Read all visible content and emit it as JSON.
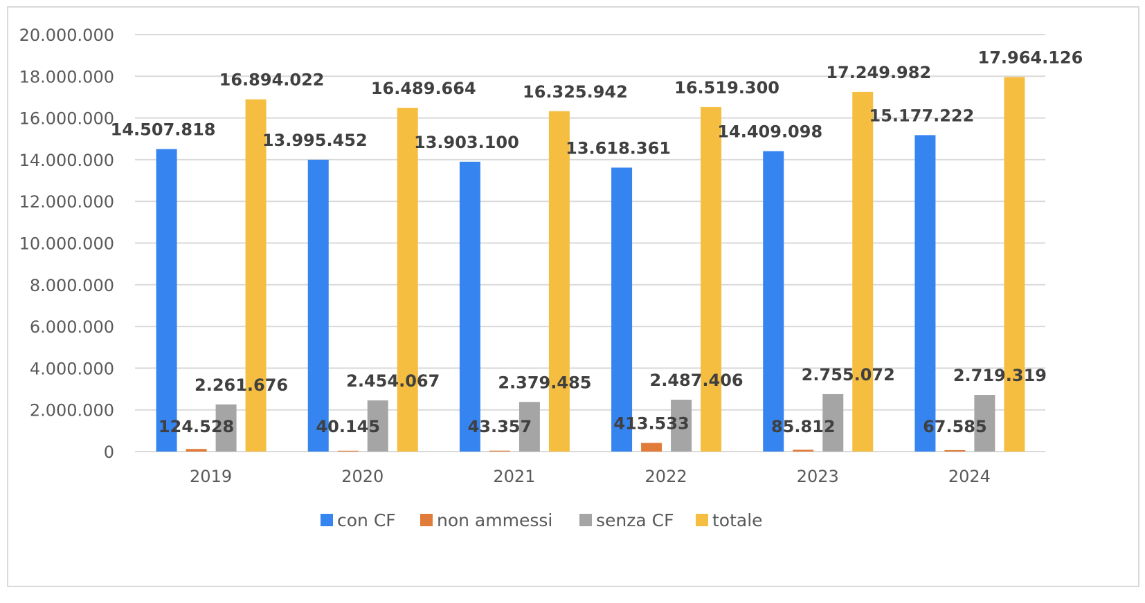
{
  "chart_data": {
    "type": "bar",
    "title": "",
    "xlabel": "",
    "ylabel": "",
    "categories": [
      "2019",
      "2020",
      "2021",
      "2022",
      "2023",
      "2024"
    ],
    "ylim": [
      0,
      20000000
    ],
    "yticks": [
      0,
      2000000,
      4000000,
      6000000,
      8000000,
      10000000,
      12000000,
      14000000,
      16000000,
      18000000,
      20000000
    ],
    "ytick_labels": [
      "0",
      "2.000.000",
      "4.000.000",
      "6.000.000",
      "8.000.000",
      "10.000.000",
      "12.000.000",
      "14.000.000",
      "16.000.000",
      "18.000.000",
      "20.000.000"
    ],
    "grid": true,
    "legend_position": "bottom",
    "series": [
      {
        "name": "con CF",
        "color": "#3584f0",
        "values": [
          14507818,
          13995452,
          13903100,
          13618361,
          14409098,
          15177222
        ],
        "labels": [
          "14.507.818",
          "13.995.452",
          "13.903.100",
          "13.618.361",
          "14.409.098",
          "15.177.222"
        ]
      },
      {
        "name": "non ammessi",
        "color": "#e07b39",
        "values": [
          124528,
          40145,
          43357,
          413533,
          85812,
          67585
        ],
        "labels": [
          "124.528",
          "40.145",
          "43.357",
          "413.533",
          "85.812",
          "67.585"
        ]
      },
      {
        "name": "senza CF",
        "color": "#a5a5a5",
        "values": [
          2261676,
          2454067,
          2379485,
          2487406,
          2755072,
          2719319
        ],
        "labels": [
          "2.261.676",
          "2.454.067",
          "2.379.485",
          "2.487.406",
          "2.755.072",
          "2.719.319"
        ]
      },
      {
        "name": "totale",
        "color": "#f5be41",
        "values": [
          16894022,
          16489664,
          16325942,
          16519300,
          17249982,
          17964126
        ],
        "labels": [
          "16.894.022",
          "16.489.664",
          "16.325.942",
          "16.519.300",
          "17.249.982",
          "17.964.126"
        ]
      }
    ]
  }
}
